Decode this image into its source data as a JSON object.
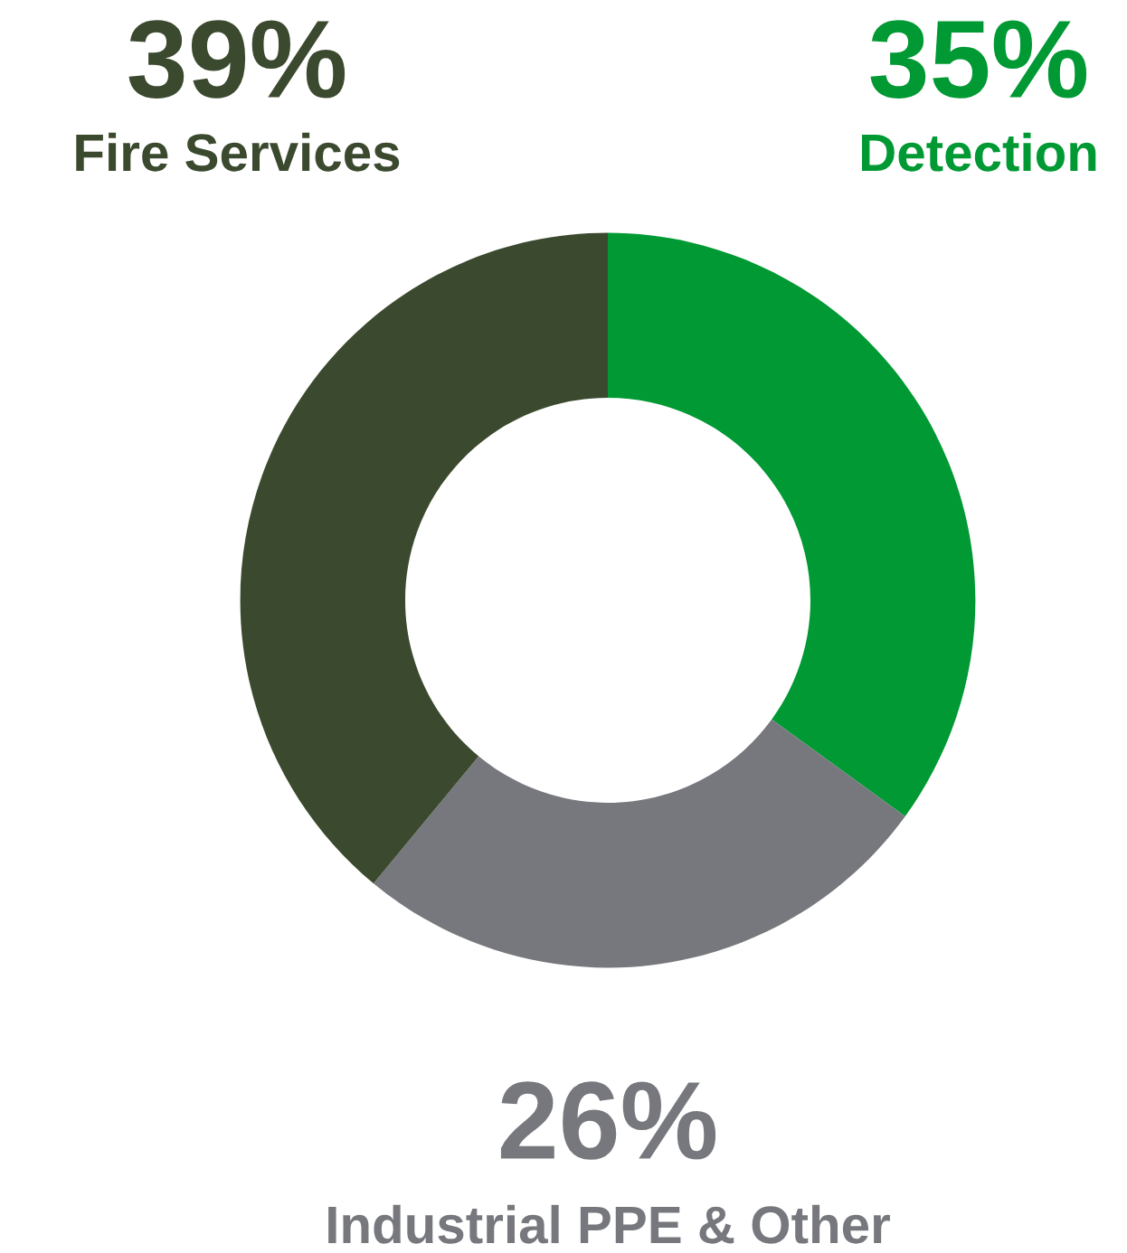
{
  "chart_data": {
    "type": "donut",
    "categories": [
      "Detection",
      "Industrial PPE & Other",
      "Fire Services"
    ],
    "values": [
      35,
      26,
      39
    ],
    "colors": [
      "#009933",
      "#76787d",
      "#3b4a2e"
    ],
    "value_labels": [
      "35%",
      "26%",
      "39%"
    ]
  }
}
